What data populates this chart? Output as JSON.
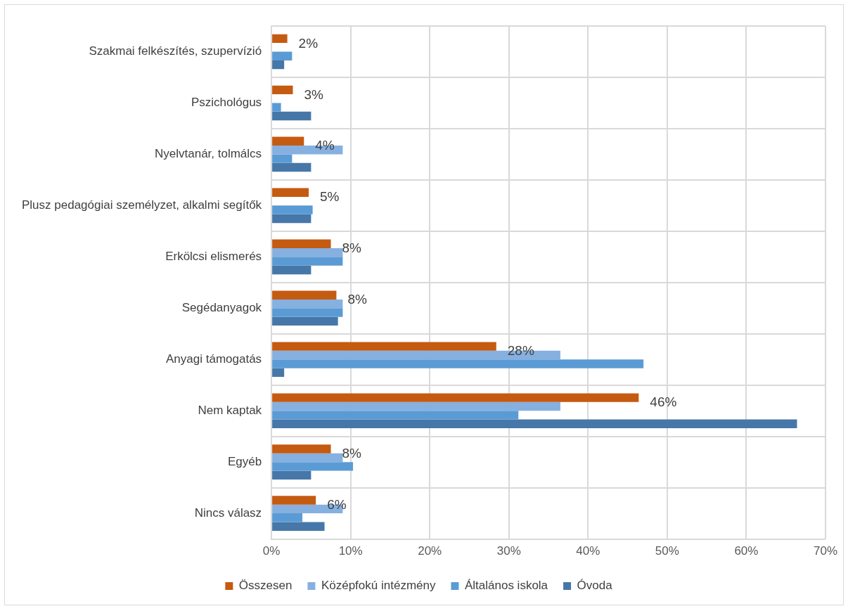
{
  "chart_data": {
    "type": "bar",
    "orientation": "horizontal",
    "categories": [
      "Szakmai felkészítés, szupervízió",
      "Pszichológus",
      "Nyelvtanár, tolmálcs",
      "Plusz pedagógiai személyzet, alkalmi segítők",
      "Erkölcsi elismerés",
      "Segédanyagok",
      "Anyagi támogatás",
      "Nem kaptak",
      "Egyéb",
      "Nincs válasz"
    ],
    "series": [
      {
        "name": "Összesen",
        "color": "#c55a11",
        "values": [
          2.0,
          2.7,
          4.1,
          4.7,
          7.5,
          8.2,
          28.4,
          46.4,
          7.5,
          5.6
        ],
        "value_labels": [
          "2%",
          "3%",
          "4%",
          "5%",
          "8%",
          "8%",
          "28%",
          "46%",
          "8%",
          "6%"
        ]
      },
      {
        "name": "Középfokú intézmény",
        "color": "#86b0e0",
        "values": [
          null,
          null,
          9.0,
          null,
          9.0,
          9.0,
          36.5,
          36.5,
          9.0,
          9.0
        ]
      },
      {
        "name": "Általános iskola",
        "color": "#5b9bd5",
        "values": [
          2.6,
          1.2,
          2.6,
          5.2,
          9.0,
          9.0,
          47.0,
          31.2,
          10.3,
          3.9
        ]
      },
      {
        "name": "Óvoda",
        "color": "#4677a8",
        "values": [
          1.6,
          5.0,
          5.0,
          5.0,
          5.0,
          8.4,
          1.6,
          66.4,
          5.0,
          6.7
        ]
      }
    ],
    "xlim": [
      0,
      70
    ],
    "xticks": [
      {
        "value": 0,
        "label": "0%"
      },
      {
        "value": 10,
        "label": "10%"
      },
      {
        "value": 20,
        "label": "20%"
      },
      {
        "value": 30,
        "label": "30%"
      },
      {
        "value": 40,
        "label": "40%"
      },
      {
        "value": 50,
        "label": "50%"
      },
      {
        "value": 60,
        "label": "60%"
      },
      {
        "value": 70,
        "label": "70%"
      }
    ],
    "grid": true,
    "legend": "bottom"
  }
}
